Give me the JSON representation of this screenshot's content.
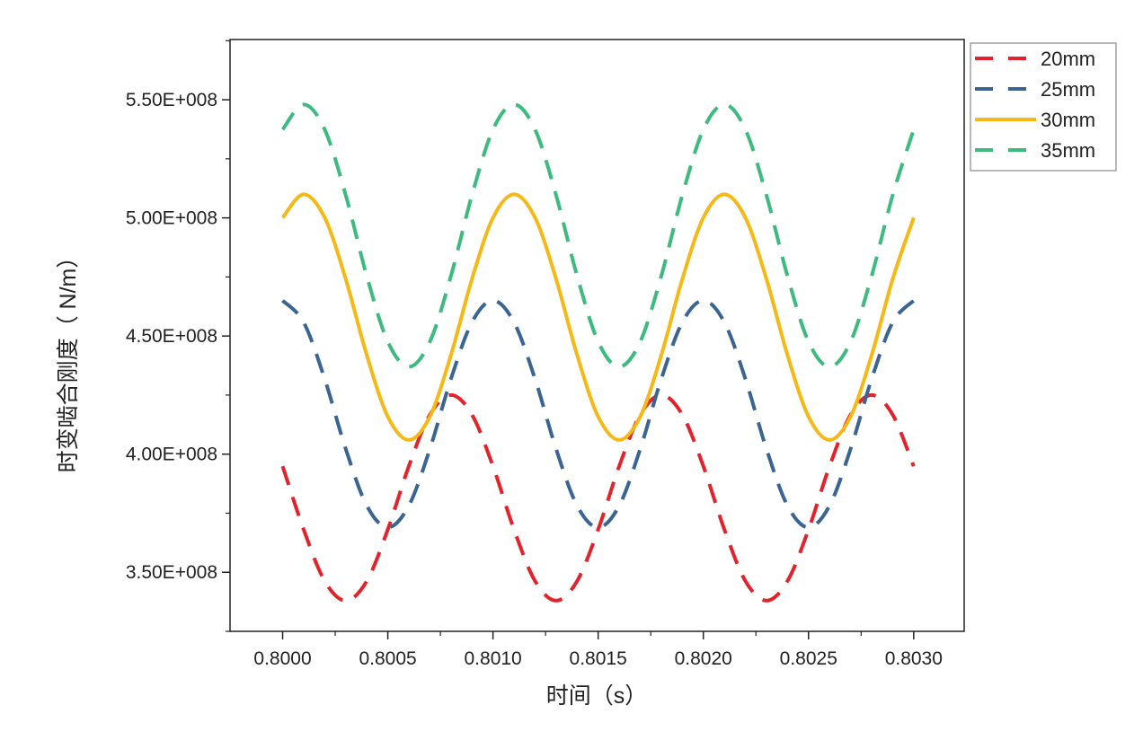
{
  "chart_data": {
    "type": "line",
    "title": "",
    "xlabel": "时间（s）",
    "ylabel": "时变啮合刚度（ N/m）",
    "xlim": [
      0.79975,
      0.80324
    ],
    "ylim": [
      325000000.0,
      575500000.0
    ],
    "grid": false,
    "legend_position": "top-right-outside",
    "x_ticks": [
      0.8,
      0.8005,
      0.801,
      0.8015,
      0.802,
      0.8025,
      0.803
    ],
    "x_tick_labels": [
      "0.8000",
      "0.8005",
      "0.8010",
      "0.8015",
      "0.8020",
      "0.8025",
      "0.8030"
    ],
    "y_ticks": [
      350000000.0,
      400000000.0,
      450000000.0,
      500000000.0,
      550000000.0
    ],
    "y_tick_labels": [
      "3.50E+008",
      "4.00E+008",
      "4.50E+008",
      "5.00E+008",
      "5.50E+008"
    ],
    "x": [
      0.8,
      0.8001,
      0.8002,
      0.8003,
      0.8004,
      0.8005,
      0.8006,
      0.8007,
      0.8008,
      0.8009,
      0.801,
      0.8011,
      0.8012,
      0.8013,
      0.8014,
      0.8015,
      0.8016,
      0.8017,
      0.8018,
      0.8019,
      0.802,
      0.8021,
      0.8022,
      0.8023,
      0.8024,
      0.8025,
      0.8026,
      0.8027,
      0.8028,
      0.8029,
      0.803
    ],
    "series": [
      {
        "name": "20mm",
        "color": "#e3232b",
        "dashed": true,
        "values": [
          394900000.0,
          368100000.0,
          346300000.0,
          338000000.0,
          346300000.0,
          368100000.0,
          394900000.0,
          416700000.0,
          425000000.0,
          416700000.0,
          394900000.0,
          368100000.0,
          346300000.0,
          338000000.0,
          346300000.0,
          368100000.0,
          394900000.0,
          416700000.0,
          425000000.0,
          416700000.0,
          394900000.0,
          368100000.0,
          346300000.0,
          338000000.0,
          346300000.0,
          368100000.0,
          394900000.0,
          416700000.0,
          425000000.0,
          416700000.0,
          394900000.0
        ]
      },
      {
        "name": "25mm",
        "color": "#3a6593",
        "dashed": true,
        "values": [
          465000000.0,
          455800000.0,
          431800000.0,
          402200000.0,
          378200000.0,
          369000000.0,
          378200000.0,
          402200000.0,
          431800000.0,
          455800000.0,
          465000000.0,
          455800000.0,
          431800000.0,
          402200000.0,
          378200000.0,
          369000000.0,
          378200000.0,
          402200000.0,
          431800000.0,
          455800000.0,
          465000000.0,
          455800000.0,
          431800000.0,
          402200000.0,
          378200000.0,
          369000000.0,
          378200000.0,
          402200000.0,
          431800000.0,
          455800000.0,
          465000000.0
        ]
      },
      {
        "name": "30mm",
        "color": "#f6b814",
        "dashed": false,
        "values": [
          500100000.0,
          510000000.0,
          500100000.0,
          474100000.0,
          441900000.0,
          415900000.0,
          406000000.0,
          415900000.0,
          441900000.0,
          474100000.0,
          500100000.0,
          510000000.0,
          500100000.0,
          474100000.0,
          441900000.0,
          415900000.0,
          406000000.0,
          415900000.0,
          441900000.0,
          474100000.0,
          500100000.0,
          510000000.0,
          500100000.0,
          474100000.0,
          441900000.0,
          415900000.0,
          406000000.0,
          415900000.0,
          441900000.0,
          474100000.0,
          500100000.0
        ]
      },
      {
        "name": "35mm",
        "color": "#3dbb7f",
        "dashed": true,
        "values": [
          537400000.0,
          548000000.0,
          537400000.0,
          509600000.0,
          475400000.0,
          447600000.0,
          437000000.0,
          447600000.0,
          475400000.0,
          509600000.0,
          537400000.0,
          548000000.0,
          537400000.0,
          509600000.0,
          475400000.0,
          447600000.0,
          437000000.0,
          447600000.0,
          475400000.0,
          509600000.0,
          537400000.0,
          548000000.0,
          537400000.0,
          509600000.0,
          475400000.0,
          447600000.0,
          437000000.0,
          447600000.0,
          475400000.0,
          509600000.0,
          537400000.0
        ]
      }
    ]
  }
}
